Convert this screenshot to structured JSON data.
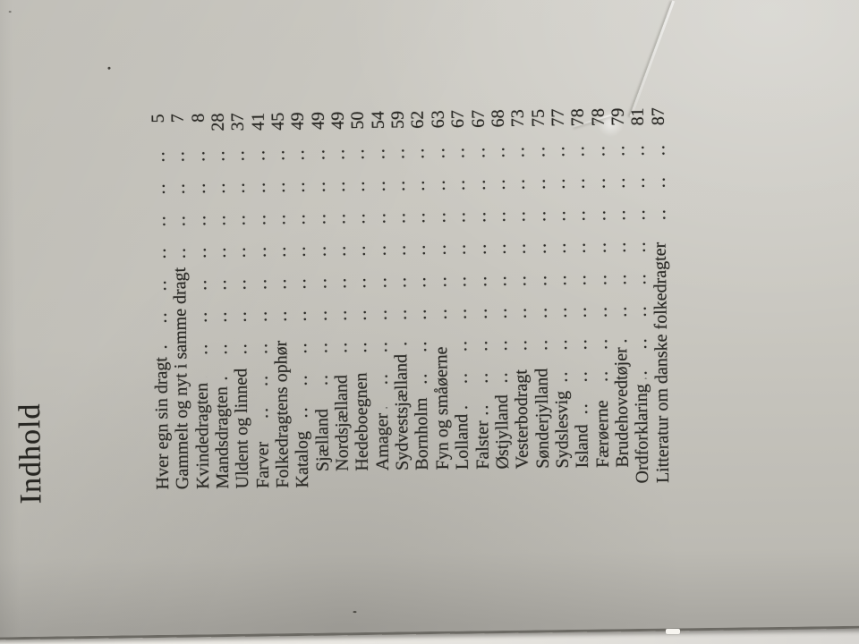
{
  "photo": {
    "description_colors": {
      "page_background": "#c8c6bf",
      "page_shadow_corner": "#a9a7a1",
      "ink_text": "#2c2b27",
      "table_surface": "#ece9e4",
      "page_edge_line": "#6b6963"
    }
  },
  "toc": {
    "title": "Indhold",
    "leader": ".. .. .. .. .. .. .. .. .. .. .. .. .. .. .. .. .. .. .. .. .. .. .. .. .. ..",
    "entries": [
      {
        "label": "Hver egn sin dragt",
        "page": "5",
        "indent": 0
      },
      {
        "label": "Gammelt og nyt i samme dragt",
        "page": "7",
        "indent": 0
      },
      {
        "label": "Kvindedragten",
        "page": "8",
        "indent": 0
      },
      {
        "label": "Mandsdragten",
        "page": "28",
        "indent": 0
      },
      {
        "label": "Uldent og linned",
        "page": "37",
        "indent": 0
      },
      {
        "label": "Farver",
        "page": "41",
        "indent": 0
      },
      {
        "label": "Folkedragtens ophør",
        "page": "45",
        "indent": 0
      },
      {
        "label": "Katalog",
        "page": "49",
        "indent": 0
      },
      {
        "label": "Sjælland",
        "page": "49",
        "indent": 1
      },
      {
        "label": "Nordsjælland",
        "page": "49",
        "indent": 1
      },
      {
        "label": "Hedeboegnen",
        "page": "50",
        "indent": 1
      },
      {
        "label": "Amager",
        "page": "54",
        "indent": 1
      },
      {
        "label": "Sydvestsjælland",
        "page": "59",
        "indent": 1
      },
      {
        "label": "Bornholm",
        "page": "62",
        "indent": 1
      },
      {
        "label": "Fyn og småøerne",
        "page": "63",
        "indent": 1
      },
      {
        "label": "Lolland",
        "page": "67",
        "indent": 1
      },
      {
        "label": "Falster",
        "page": "67",
        "indent": 1
      },
      {
        "label": "Østjylland",
        "page": "68",
        "indent": 1
      },
      {
        "label": "Vesterbodragt",
        "page": "73",
        "indent": 1
      },
      {
        "label": "Sønderjylland",
        "page": "75",
        "indent": 1
      },
      {
        "label": "Sydslesvig",
        "page": "77",
        "indent": 1
      },
      {
        "label": "Island",
        "page": "78",
        "indent": 1
      },
      {
        "label": "Færøerne",
        "page": "78",
        "indent": 1
      },
      {
        "label": "Brudehovedtøjer",
        "page": "79",
        "indent": 1
      },
      {
        "label": "Ordforklaring",
        "page": "81",
        "indent": 0
      },
      {
        "label": "Litteratur om danske folkedragter",
        "page": "87",
        "indent": 0
      }
    ]
  }
}
